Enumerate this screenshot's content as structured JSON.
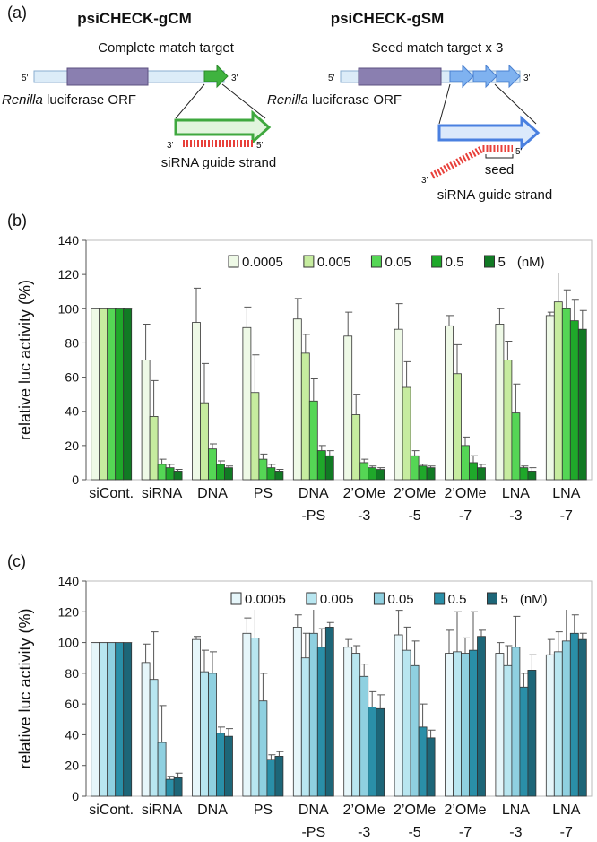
{
  "diagram": {
    "label": "(a)",
    "left": {
      "title": "psiCHECK-gCM",
      "subtitle": "Complete match target",
      "five_prime": "5'",
      "three_prime": "3'",
      "orf_italic": "Renilla",
      "orf": "luciferase ORF",
      "strand_3": "3'",
      "strand_5": "5'",
      "strand": "siRNA guide strand"
    },
    "right": {
      "title": "psiCHECK-gSM",
      "subtitle": "Seed match target x 3",
      "five_prime": "5'",
      "three_prime": "3'",
      "orf_italic": "Renilla",
      "orf": "luciferase ORF",
      "strand_3": "3'",
      "strand_5": "5'",
      "seed": "seed",
      "strand": "siRNA guide strand"
    }
  },
  "chart_data": [
    {
      "type": "bar",
      "label": "(b)",
      "ylabel": "relative luc activity (%)",
      "legend_unit": "(nM)",
      "categories": [
        [
          "siCont."
        ],
        [
          "siRNA"
        ],
        [
          "DNA"
        ],
        [
          "PS"
        ],
        [
          "DNA",
          "-PS"
        ],
        [
          "2’OMe",
          "-3"
        ],
        [
          "2’OMe",
          "-5"
        ],
        [
          "2’OMe",
          "-7"
        ],
        [
          "LNA",
          "-3"
        ],
        [
          "LNA",
          "-7"
        ]
      ],
      "ylim": [
        0,
        140
      ],
      "yticks": [
        0,
        20,
        40,
        60,
        80,
        100,
        120,
        140
      ],
      "grid": false,
      "series": [
        {
          "name": "0.0005",
          "color": "#eef9e6",
          "values": [
            100,
            70,
            92,
            89,
            94,
            84,
            88,
            90,
            91,
            96
          ],
          "errors": [
            0,
            21,
            20,
            12,
            12,
            14,
            15,
            6,
            9,
            2
          ]
        },
        {
          "name": "0.005",
          "color": "#c6ec9f",
          "values": [
            100,
            37,
            45,
            51,
            74,
            38,
            54,
            62,
            70,
            104
          ],
          "errors": [
            0,
            21,
            23,
            22,
            11,
            12,
            15,
            17,
            11,
            17
          ]
        },
        {
          "name": "0.05",
          "color": "#55d655",
          "values": [
            100,
            9,
            18,
            12,
            46,
            10,
            14,
            20,
            39,
            100
          ],
          "errors": [
            0,
            3,
            3,
            3,
            13,
            2,
            3,
            5,
            17,
            11
          ]
        },
        {
          "name": "0.5",
          "color": "#1fa82a",
          "values": [
            100,
            7,
            9,
            7,
            17,
            7,
            8,
            10,
            7,
            93
          ],
          "errors": [
            0,
            2,
            2,
            2,
            3,
            1,
            1,
            4,
            1,
            12
          ]
        },
        {
          "name": "5",
          "color": "#117a24",
          "values": [
            100,
            5,
            7,
            5,
            14,
            6,
            7,
            7,
            5,
            88
          ],
          "errors": [
            0,
            1,
            1,
            1,
            3,
            1,
            1,
            2,
            2,
            11
          ]
        }
      ]
    },
    {
      "type": "bar",
      "label": "(c)",
      "ylabel": "relative luc activity (%)",
      "legend_unit": "(nM)",
      "categories": [
        [
          "siCont."
        ],
        [
          "siRNA"
        ],
        [
          "DNA"
        ],
        [
          "PS"
        ],
        [
          "DNA",
          "-PS"
        ],
        [
          "2’OMe",
          "-3"
        ],
        [
          "2’OMe",
          "-5"
        ],
        [
          "2’OMe",
          "-7"
        ],
        [
          "LNA",
          "-3"
        ],
        [
          "LNA",
          "-7"
        ]
      ],
      "ylim": [
        0,
        140
      ],
      "yticks": [
        0,
        20,
        40,
        60,
        80,
        100,
        120,
        140
      ],
      "grid": false,
      "series": [
        {
          "name": "0.0005",
          "color": "#e6f6fa",
          "values": [
            100,
            87,
            102,
            106,
            110,
            97,
            105,
            93,
            93,
            92
          ],
          "errors": [
            0,
            12,
            2,
            10,
            8,
            5,
            16,
            15,
            7,
            10
          ]
        },
        {
          "name": "0.005",
          "color": "#b8e6f0",
          "values": [
            100,
            76,
            81,
            103,
            90,
            93,
            95,
            94,
            85,
            94
          ],
          "errors": [
            0,
            31,
            14,
            21,
            16,
            5,
            15,
            26,
            13,
            13
          ]
        },
        {
          "name": "0.05",
          "color": "#8fd0e0",
          "values": [
            100,
            35,
            80,
            62,
            106,
            78,
            85,
            93,
            97,
            101
          ],
          "errors": [
            0,
            24,
            14,
            18,
            28,
            8,
            16,
            10,
            20,
            21
          ]
        },
        {
          "name": "0.5",
          "color": "#2a8fa8",
          "values": [
            100,
            11,
            41,
            24,
            97,
            58,
            45,
            95,
            71,
            106
          ],
          "errors": [
            0,
            2,
            4,
            3,
            12,
            10,
            15,
            25,
            9,
            12
          ]
        },
        {
          "name": "5",
          "color": "#1d6678",
          "values": [
            100,
            12,
            39,
            26,
            110,
            57,
            38,
            104,
            82,
            102
          ],
          "errors": [
            0,
            3,
            5,
            3,
            3,
            9,
            5,
            4,
            10,
            4
          ]
        }
      ]
    }
  ]
}
